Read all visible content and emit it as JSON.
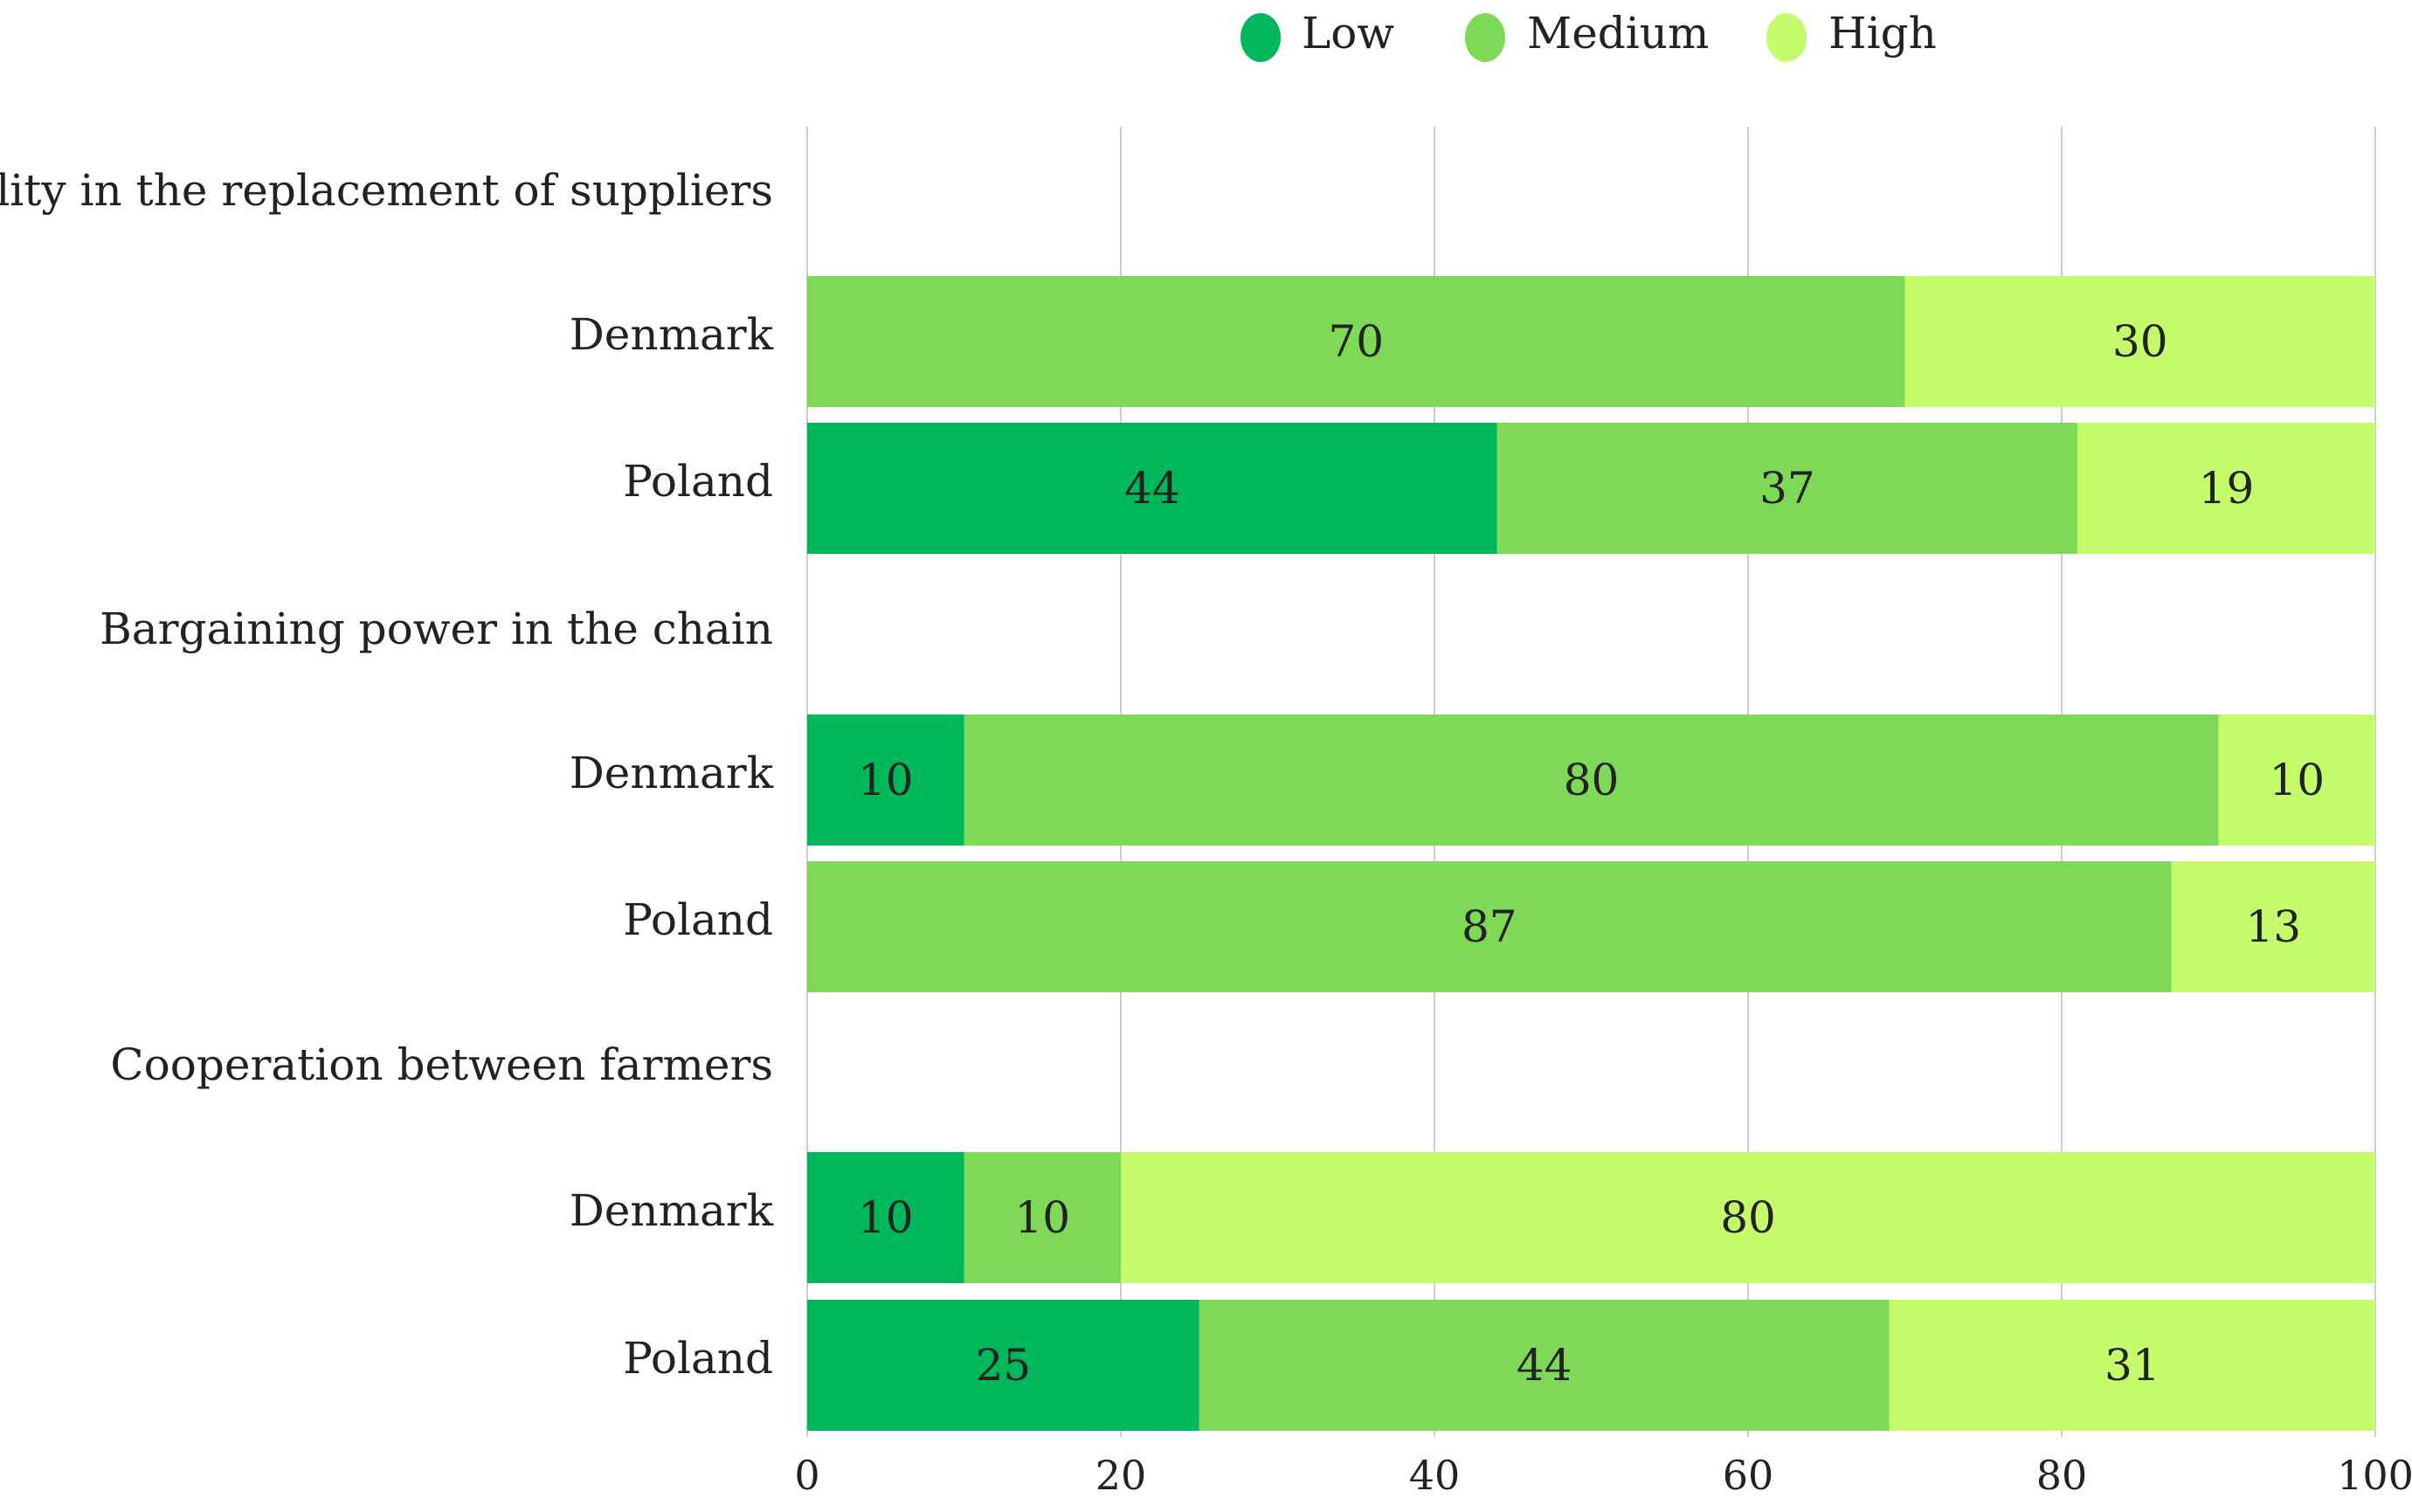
{
  "chart_data": {
    "type": "bar",
    "orientation": "horizontal",
    "stacked": true,
    "legend_position": "top",
    "colors": {
      "Low": "#00b85c",
      "Medium": "#7ed957",
      "High": "#c4fc6c"
    },
    "series_names": [
      "Low",
      "Medium",
      "High"
    ],
    "xlim": [
      0,
      100
    ],
    "xticks": [
      0,
      20,
      40,
      60,
      80,
      100
    ],
    "grid": true,
    "groups": [
      {
        "label": "Flexibility in the replacement of suppliers",
        "rows": [
          {
            "label": "Denmark",
            "values": [
              0,
              70,
              30
            ]
          },
          {
            "label": "Poland",
            "values": [
              44,
              37,
              19
            ]
          }
        ]
      },
      {
        "label": "Bargaining power in the chain",
        "rows": [
          {
            "label": "Denmark",
            "values": [
              10,
              80,
              10
            ]
          },
          {
            "label": "Poland",
            "values": [
              0,
              87,
              13
            ]
          }
        ]
      },
      {
        "label": "Cooperation between farmers",
        "rows": [
          {
            "label": "Denmark",
            "values": [
              10,
              10,
              80
            ]
          },
          {
            "label": "Poland",
            "values": [
              25,
              44,
              31
            ]
          }
        ]
      }
    ]
  }
}
